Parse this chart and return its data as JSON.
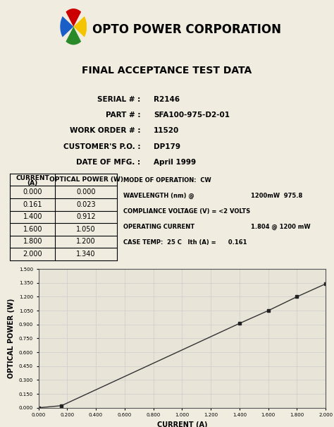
{
  "title": "FINAL ACCEPTANCE TEST DATA",
  "company": "OPTO POWER CORPORATION",
  "serial": "R2146",
  "part": "SFA100-975-D2-01",
  "work_order": "11520",
  "customer_po": "DP179",
  "date_mfg": "April 1999",
  "table_data": [
    [
      0.0,
      0.0
    ],
    [
      0.161,
      0.023
    ],
    [
      1.4,
      0.912
    ],
    [
      1.6,
      1.05
    ],
    [
      1.8,
      1.2
    ],
    [
      2.0,
      1.34
    ]
  ],
  "mode": "MODE OF OPERATION:  CW",
  "wavelength_left": "WAVELENGTH (nm) @",
  "wavelength_right": "1200mW  975.8",
  "compliance": "COMPLIANCE VOLTAGE (V) = <2 VOLTS",
  "op_current_left": "OPERATING CURRENT",
  "op_current_right": "1.804 @ 1200 mW",
  "case_temp": "CASE TEMP:  25 C   Ith (A) =      0.161",
  "plot_current": [
    0.0,
    0.161,
    1.4,
    1.6,
    1.8,
    2.0
  ],
  "plot_power": [
    0.0,
    0.023,
    0.912,
    1.05,
    1.2,
    1.34
  ],
  "xlabel": "CURRENT (A)",
  "ylabel": "OPTICAL POWER (W)",
  "xlim": [
    0.0,
    2.0
  ],
  "ylim": [
    0.0,
    1.5
  ],
  "xticks": [
    0.0,
    0.2,
    0.4,
    0.6,
    0.8,
    1.0,
    1.2,
    1.4,
    1.6,
    1.8,
    2.0
  ],
  "yticks": [
    0.0,
    0.15,
    0.3,
    0.45,
    0.6,
    0.75,
    0.9,
    1.05,
    1.2,
    1.35,
    1.5
  ],
  "bg_color": "#f0ece0",
  "plot_bg": "#e8e4d8",
  "line_color": "#333333",
  "marker_color": "#222222",
  "grid_color": "#cccccc",
  "logo_colors": [
    "#cc0000",
    "#f5c400",
    "#2a8a2a",
    "#1a5fc8"
  ],
  "logo_angles": [
    90,
    0,
    270,
    180
  ]
}
